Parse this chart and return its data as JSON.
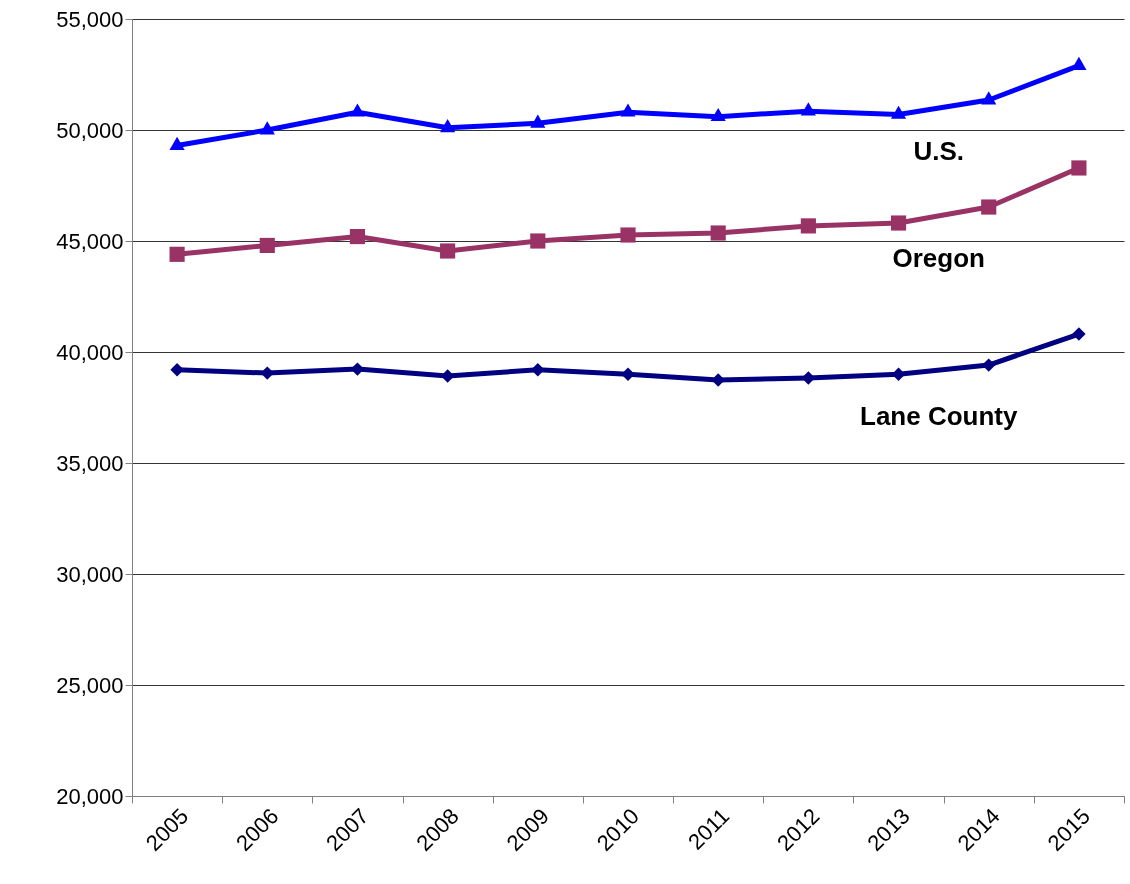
{
  "chart_data": {
    "type": "line",
    "categories": [
      "2005",
      "2006",
      "2007",
      "2008",
      "2009",
      "2010",
      "2011",
      "2012",
      "2013",
      "2014",
      "2015"
    ],
    "series": [
      {
        "name": "U.S.",
        "color": "#0000ff",
        "marker": "triangle",
        "values": [
          49300,
          50000,
          50800,
          50100,
          50300,
          50800,
          50600,
          50850,
          50700,
          51350,
          52900
        ]
      },
      {
        "name": "Oregon",
        "color": "#993366",
        "marker": "square",
        "values": [
          44400,
          44800,
          45200,
          44550,
          45000,
          45270,
          45360,
          45680,
          45810,
          46530,
          48290
        ]
      },
      {
        "name": "Lane County",
        "color": "#000080",
        "marker": "diamond",
        "values": [
          39200,
          39050,
          39230,
          38920,
          39200,
          39000,
          38740,
          38830,
          39000,
          39410,
          40810
        ]
      }
    ],
    "ylim": [
      20000,
      55000
    ],
    "yticks": [
      {
        "value": 20000,
        "label": "20,000"
      },
      {
        "value": 25000,
        "label": "25,000"
      },
      {
        "value": 30000,
        "label": "30,000"
      },
      {
        "value": 35000,
        "label": "35,000"
      },
      {
        "value": 40000,
        "label": "40,000"
      },
      {
        "value": 45000,
        "label": "45,000"
      },
      {
        "value": 50000,
        "label": "50,000"
      },
      {
        "value": 55000,
        "label": "55,000"
      }
    ],
    "grid": "y",
    "line_style": "solid"
  }
}
